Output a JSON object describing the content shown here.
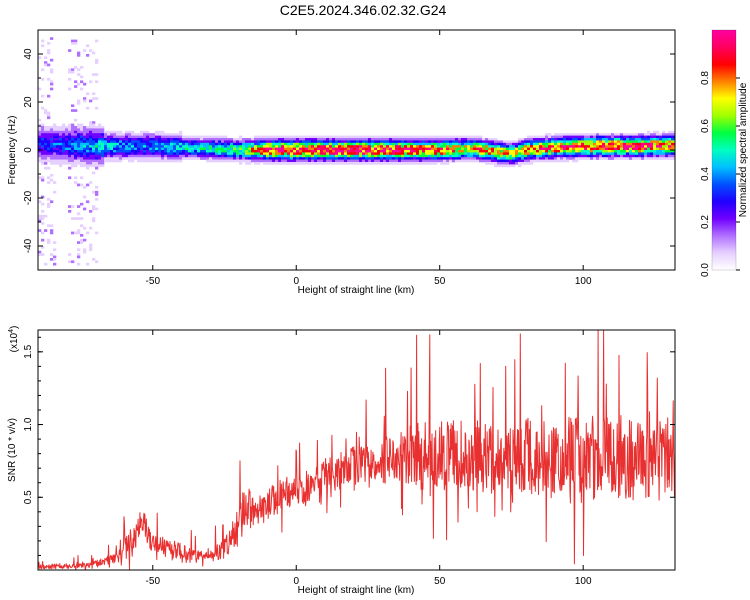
{
  "title": "C2E5.2024.346.02.32.G24",
  "colors": {
    "spectrogram_map": [
      "#ffffff",
      "#e6d0ff",
      "#b070ff",
      "#7000ff",
      "#2000ff",
      "#0050ff",
      "#00c0ff",
      "#00ffc0",
      "#00ff40",
      "#a0ff00",
      "#ffff00",
      "#ff8000",
      "#ff0000",
      "#ff0060",
      "#ff00a0"
    ],
    "snr_line": "#e83030"
  },
  "chart_data": [
    {
      "type": "heatmap",
      "xlabel": "Height of straight line (km)",
      "ylabel": "Frequency (Hz)",
      "xlim": [
        -90,
        132
      ],
      "ylim": [
        -50,
        50
      ],
      "xticks": [
        -50,
        0,
        50,
        100
      ],
      "yticks": [
        -40,
        -20,
        0,
        20,
        40
      ],
      "colorbar": {
        "label": "Normalized spectral amplitude",
        "range": [
          0,
          1
        ],
        "ticks": [
          0.0,
          0.2,
          0.4,
          0.6,
          0.8
        ]
      },
      "ridge": {
        "description_points_x": [
          -90,
          -80,
          -70,
          -60,
          -50,
          -40,
          -30,
          -20,
          -10,
          0,
          10,
          20,
          30,
          40,
          50,
          60,
          65,
          70,
          75,
          80,
          90,
          100,
          110,
          120,
          132
        ],
        "center_freq": [
          3,
          2.5,
          2,
          2,
          2,
          1.5,
          1,
          0.5,
          0.5,
          0.5,
          0.5,
          0.5,
          0.5,
          0.5,
          0.5,
          1,
          0.5,
          -0.5,
          -1,
          0.5,
          1.5,
          2,
          2,
          2,
          2.5
        ],
        "peak_amplitude": [
          0.3,
          0.35,
          0.45,
          0.4,
          0.4,
          0.45,
          0.5,
          0.6,
          0.9,
          0.95,
          0.95,
          0.95,
          0.95,
          0.9,
          0.85,
          0.7,
          0.8,
          0.75,
          0.7,
          0.8,
          0.85,
          0.9,
          0.9,
          0.9,
          0.85
        ]
      }
    },
    {
      "type": "line",
      "xlabel": "Height of straight line (km)",
      "ylabel": "SNR (10 * v/v)",
      "y_multiplier": "(x10",
      "y_multiplier_exp": "4",
      "y_multiplier_close": ")",
      "xlim": [
        -90,
        132
      ],
      "ylim": [
        0,
        16500
      ],
      "xticks": [
        -50,
        0,
        50,
        100
      ],
      "yticks": [
        5000,
        10000,
        15000
      ],
      "ytick_labels": [
        "0.5",
        "1.0",
        "1.5"
      ],
      "series": [
        {
          "x": [
            -90,
            -80,
            -70,
            -62,
            -57,
            -54,
            -50,
            -45,
            -40,
            -35,
            -30,
            -25,
            -20,
            -18,
            -15,
            -10,
            -5,
            0,
            5,
            10,
            15,
            20,
            25,
            30,
            35,
            40,
            45,
            50,
            55,
            60,
            65,
            70,
            75,
            80,
            85,
            90,
            95,
            100,
            105,
            110,
            115,
            120,
            125,
            129,
            132
          ],
          "y": [
            200,
            300,
            400,
            900,
            2000,
            3500,
            1800,
            1500,
            1300,
            900,
            1000,
            1500,
            3000,
            4500,
            4000,
            4500,
            5200,
            5500,
            5800,
            6500,
            6800,
            7200,
            7200,
            7500,
            7800,
            8000,
            7800,
            7800,
            8000,
            7900,
            7800,
            7600,
            7700,
            7800,
            7600,
            7600,
            7700,
            7600,
            7800,
            7500,
            7600,
            7400,
            7200,
            7400,
            7300
          ],
          "amplitude": [
            250,
            300,
            400,
            600,
            1800,
            1600,
            1200,
            1100,
            900,
            700,
            700,
            1200,
            2200,
            2500,
            2000,
            2000,
            1800,
            1800,
            1800,
            2000,
            2200,
            2200,
            2200,
            2600,
            3000,
            3500,
            4000,
            4000,
            4000,
            4200,
            4000,
            4000,
            4000,
            4500,
            4500,
            4500,
            4800,
            5000,
            4800,
            4800,
            4800,
            4500,
            4500,
            5500,
            5000
          ]
        }
      ]
    }
  ]
}
